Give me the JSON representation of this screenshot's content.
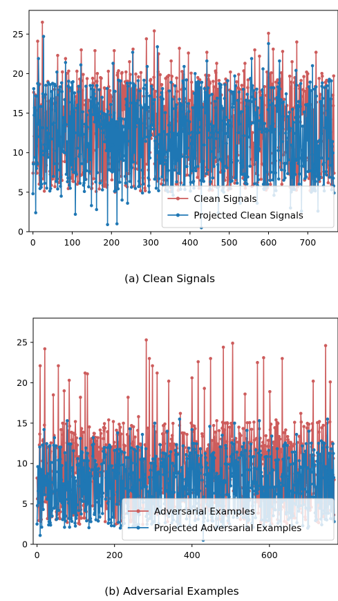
{
  "chart_data": [
    {
      "type": "line",
      "caption": "(a) Clean Signals",
      "x": {
        "start": 0,
        "end": 767,
        "step": 1
      },
      "xlim": [
        -10,
        777
      ],
      "ylim": [
        0,
        28
      ],
      "xticks": [
        0,
        100,
        200,
        300,
        400,
        500,
        600,
        700
      ],
      "yticks": [
        0,
        5,
        10,
        15,
        20,
        25
      ],
      "grid": false,
      "legend_placement": "lower-right",
      "series": [
        {
          "name": "Clean Signals",
          "color": "#cd5c5c",
          "anchors": [
            [
              0,
              7.4
            ],
            [
              6,
              17.3
            ],
            [
              12,
              24.1
            ],
            [
              18,
              13.5
            ],
            [
              24,
              26.5
            ],
            [
              30,
              12.0
            ],
            [
              38,
              19.0
            ],
            [
              45,
              8.1
            ],
            [
              54,
              16.2
            ],
            [
              63,
              22.3
            ],
            [
              73,
              8.9
            ],
            [
              83,
              21.9
            ],
            [
              97,
              15.0
            ],
            [
              110,
              17.1
            ],
            [
              123,
              23.0
            ],
            [
              134,
              16.6
            ],
            [
              146,
              12.7
            ],
            [
              158,
              22.9
            ],
            [
              170,
              11.0
            ],
            [
              182,
              18.2
            ],
            [
              195,
              14.6
            ],
            [
              207,
              22.9
            ],
            [
              219,
              12.4
            ],
            [
              233,
              15.5
            ],
            [
              246,
              21.5
            ],
            [
              255,
              23.1
            ],
            [
              266,
              17.9
            ],
            [
              279,
              13.2
            ],
            [
              289,
              24.4
            ],
            [
              301,
              11.8
            ],
            [
              309,
              25.4
            ],
            [
              320,
              22.5
            ],
            [
              331,
              15.3
            ],
            [
              342,
              19.6
            ],
            [
              352,
              21.6
            ],
            [
              362,
              13.1
            ],
            [
              373,
              23.2
            ],
            [
              385,
              15.3
            ],
            [
              396,
              22.6
            ],
            [
              409,
              11.1
            ],
            [
              420,
              19.5
            ],
            [
              431,
              12.2
            ],
            [
              443,
              22.7
            ],
            [
              455,
              13.9
            ],
            [
              468,
              21.3
            ],
            [
              480,
              17.3
            ],
            [
              492,
              14.2
            ],
            [
              503,
              20.2
            ],
            [
              515,
              12.6
            ],
            [
              527,
              18.0
            ],
            [
              540,
              21.3
            ],
            [
              553,
              15.9
            ],
            [
              565,
              23.0
            ],
            [
              577,
              22.2
            ],
            [
              589,
              16.0
            ],
            [
              600,
              25.1
            ],
            [
              612,
              23.1
            ],
            [
              624,
              15.8
            ],
            [
              636,
              22.8
            ],
            [
              648,
              13.0
            ],
            [
              660,
              21.5
            ],
            [
              672,
              24.0
            ],
            [
              684,
              17.1
            ],
            [
              697,
              20.2
            ],
            [
              709,
              15.0
            ],
            [
              721,
              22.7
            ],
            [
              733,
              12.8
            ],
            [
              745,
              18.9
            ],
            [
              757,
              16.5
            ],
            [
              767,
              7.4
            ]
          ],
          "range": [
            5.0,
            20.4
          ],
          "seed": 17
        },
        {
          "name": "Projected Clean Signals",
          "color": "#1f77b4",
          "anchors": [
            [
              0,
              4.8
            ],
            [
              7,
              2.4
            ],
            [
              14,
              21.9
            ],
            [
              22,
              6.0
            ],
            [
              27,
              24.7
            ],
            [
              34,
              13.1
            ],
            [
              44,
              18.6
            ],
            [
              54,
              8.6
            ],
            [
              61,
              20.2
            ],
            [
              72,
              4.5
            ],
            [
              83,
              21.4
            ],
            [
              95,
              5.5
            ],
            [
              108,
              2.2
            ],
            [
              122,
              21.1
            ],
            [
              135,
              18.4
            ],
            [
              149,
              3.3
            ],
            [
              162,
              2.8
            ],
            [
              176,
              17.0
            ],
            [
              190,
              0.9
            ],
            [
              204,
              21.3
            ],
            [
              214,
              1.0
            ],
            [
              227,
              4.0
            ],
            [
              241,
              3.6
            ],
            [
              254,
              22.7
            ],
            [
              267,
              16.6
            ],
            [
              279,
              4.9
            ],
            [
              291,
              20.9
            ],
            [
              301,
              13.0
            ],
            [
              317,
              23.4
            ],
            [
              330,
              18.1
            ],
            [
              343,
              12.3
            ],
            [
              357,
              4.6
            ],
            [
              371,
              7.4
            ],
            [
              385,
              20.9
            ],
            [
              399,
              13.9
            ],
            [
              413,
              20.0
            ],
            [
              429,
              0.5
            ],
            [
              443,
              21.6
            ],
            [
              457,
              12.0
            ],
            [
              472,
              2.4
            ],
            [
              486,
              5.0
            ],
            [
              500,
              13.4
            ],
            [
              514,
              19.7
            ],
            [
              528,
              3.6
            ],
            [
              542,
              6.6
            ],
            [
              557,
              21.9
            ],
            [
              571,
              3.6
            ],
            [
              586,
              20.6
            ],
            [
              600,
              23.8
            ],
            [
              614,
              4.6
            ],
            [
              628,
              21.6
            ],
            [
              642,
              6.8
            ],
            [
              656,
              3.0
            ],
            [
              670,
              20.4
            ],
            [
              684,
              2.6
            ],
            [
              698,
              11.6
            ],
            [
              712,
              21.0
            ],
            [
              726,
              2.6
            ],
            [
              740,
              5.8
            ],
            [
              754,
              19.0
            ],
            [
              767,
              4.9
            ]
          ],
          "range": [
            5.0,
            19.4
          ],
          "seed": 29
        }
      ]
    },
    {
      "type": "line",
      "caption": "(b) Adversarial Examples",
      "x": {
        "start": 0,
        "end": 767,
        "step": 1
      },
      "xlim": [
        -10,
        777
      ],
      "ylim": [
        0,
        28
      ],
      "xticks": [
        0,
        200,
        400,
        600
      ],
      "yticks": [
        0,
        5,
        10,
        15,
        20,
        25
      ],
      "grid": false,
      "legend_placement": "lower-right",
      "series": [
        {
          "name": "Adversarial Examples",
          "color": "#cd5c5c",
          "anchors": [
            [
              0,
              8.2
            ],
            [
              8,
              22.1
            ],
            [
              20,
              24.2
            ],
            [
              35,
              11.5
            ],
            [
              42,
              18.5
            ],
            [
              55,
              22.1
            ],
            [
              70,
              19.0
            ],
            [
              83,
              20.3
            ],
            [
              98,
              13.6
            ],
            [
              112,
              18.2
            ],
            [
              124,
              21.2
            ],
            [
              130,
              21.1
            ],
            [
              142,
              12.0
            ],
            [
              160,
              11.4
            ],
            [
              173,
              14.1
            ],
            [
              185,
              15.4
            ],
            [
              197,
              15.2
            ],
            [
              210,
              12.6
            ],
            [
              222,
              11.3
            ],
            [
              235,
              18.2
            ],
            [
              248,
              10.4
            ],
            [
              262,
              15.8
            ],
            [
              274,
              9.9
            ],
            [
              282,
              25.3
            ],
            [
              290,
              23.0
            ],
            [
              298,
              22.1
            ],
            [
              310,
              21.2
            ],
            [
              326,
              14.7
            ],
            [
              340,
              20.2
            ],
            [
              354,
              12.4
            ],
            [
              370,
              16.2
            ],
            [
              387,
              13.6
            ],
            [
              400,
              20.6
            ],
            [
              416,
              22.6
            ],
            [
              432,
              19.3
            ],
            [
              448,
              23.0
            ],
            [
              464,
              15.3
            ],
            [
              481,
              24.4
            ],
            [
              497,
              14.5
            ],
            [
              505,
              24.9
            ],
            [
              521,
              14.5
            ],
            [
              537,
              18.6
            ],
            [
              553,
              12.6
            ],
            [
              569,
              22.5
            ],
            [
              585,
              23.1
            ],
            [
              601,
              18.9
            ],
            [
              617,
              15.4
            ],
            [
              633,
              23.0
            ],
            [
              649,
              12.7
            ],
            [
              665,
              15.1
            ],
            [
              681,
              16.2
            ],
            [
              697,
              14.4
            ],
            [
              713,
              20.2
            ],
            [
              729,
              15.2
            ],
            [
              745,
              24.6
            ],
            [
              757,
              20.1
            ],
            [
              767,
              8.0
            ]
          ],
          "range": [
            2.4,
            15.2
          ],
          "seed": 43
        },
        {
          "name": "Projected Adversarial Examples",
          "color": "#1f77b4",
          "anchors": [
            [
              0,
              2.5
            ],
            [
              8,
              1.1
            ],
            [
              18,
              14.2
            ],
            [
              30,
              2.4
            ],
            [
              45,
              13.2
            ],
            [
              62,
              5.3
            ],
            [
              78,
              15.3
            ],
            [
              95,
              3.9
            ],
            [
              112,
              13.1
            ],
            [
              128,
              2.9
            ],
            [
              145,
              13.2
            ],
            [
              160,
              4.0
            ],
            [
              176,
              11.1
            ],
            [
              192,
              2.3
            ],
            [
              208,
              13.8
            ],
            [
              224,
              3.3
            ],
            [
              240,
              14.3
            ],
            [
              256,
              2.3
            ],
            [
              272,
              13.6
            ],
            [
              288,
              3.8
            ],
            [
              304,
              15.0
            ],
            [
              320,
              4.1
            ],
            [
              336,
              14.0
            ],
            [
              352,
              3.0
            ],
            [
              368,
              15.5
            ],
            [
              384,
              4.4
            ],
            [
              400,
              14.2
            ],
            [
              416,
              3.1
            ],
            [
              429,
              0.5
            ],
            [
              446,
              14.6
            ],
            [
              462,
              2.0
            ],
            [
              478,
              13.5
            ],
            [
              494,
              3.4
            ],
            [
              510,
              15.0
            ],
            [
              526,
              3.7
            ],
            [
              542,
              14.1
            ],
            [
              558,
              2.1
            ],
            [
              574,
              15.3
            ],
            [
              590,
              3.0
            ],
            [
              606,
              13.4
            ],
            [
              622,
              2.6
            ],
            [
              638,
              12.3
            ],
            [
              654,
              3.3
            ],
            [
              670,
              13.6
            ],
            [
              686,
              2.3
            ],
            [
              702,
              14.0
            ],
            [
              718,
              3.9
            ],
            [
              734,
              12.8
            ],
            [
              750,
              15.5
            ],
            [
              760,
              4.1
            ],
            [
              767,
              2.8
            ]
          ],
          "range": [
            2.0,
            12.6
          ],
          "seed": 71
        }
      ]
    }
  ]
}
